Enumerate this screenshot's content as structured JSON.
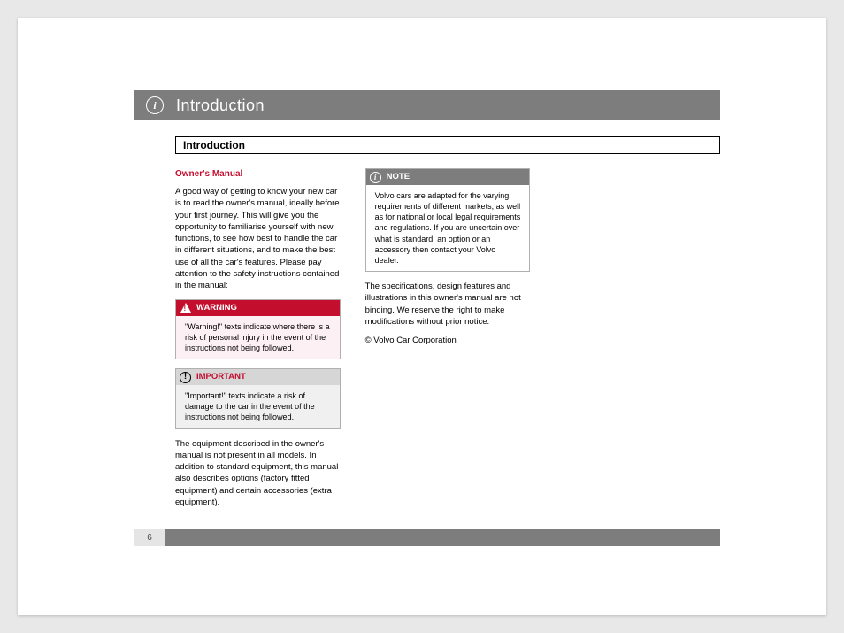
{
  "header": {
    "title": "Introduction"
  },
  "section": {
    "title": "Introduction"
  },
  "col1": {
    "subtitle": "Owner's Manual",
    "p1": "A good way of getting to know your new car is to read the owner's manual, ideally before your first journey. This will give you the opportunity to familiarise yourself with new functions, to see how best to handle the car in different situations, and to make the best use of all the car's features. Please pay attention to the safety instructions contained in the manual:",
    "warning": {
      "label": "WARNING",
      "body": "\"Warning!\" texts indicate where there is a risk of personal injury in the event of the instructions not being followed."
    },
    "important": {
      "label": "IMPORTANT",
      "body": "\"Important!\" texts indicate a risk of damage to the car in the event of the instructions not being followed."
    },
    "p2": "The equipment described in the owner's manual is not present in all models. In addition to standard equipment, this manual also describes options (factory fitted equipment) and certain accessories (extra equipment)."
  },
  "col2": {
    "note": {
      "label": "NOTE",
      "body": "Volvo cars are adapted for the varying requirements of different markets, as well as for national or local legal requirements and regulations. If you are uncertain over what is standard, an option or an accessory then contact your Volvo dealer."
    },
    "p1": "The specifications, design features and illustrations in this owner's manual are not binding. We reserve the right to make modifications without prior notice.",
    "p2": "© Volvo Car Corporation"
  },
  "pageNumber": "6"
}
